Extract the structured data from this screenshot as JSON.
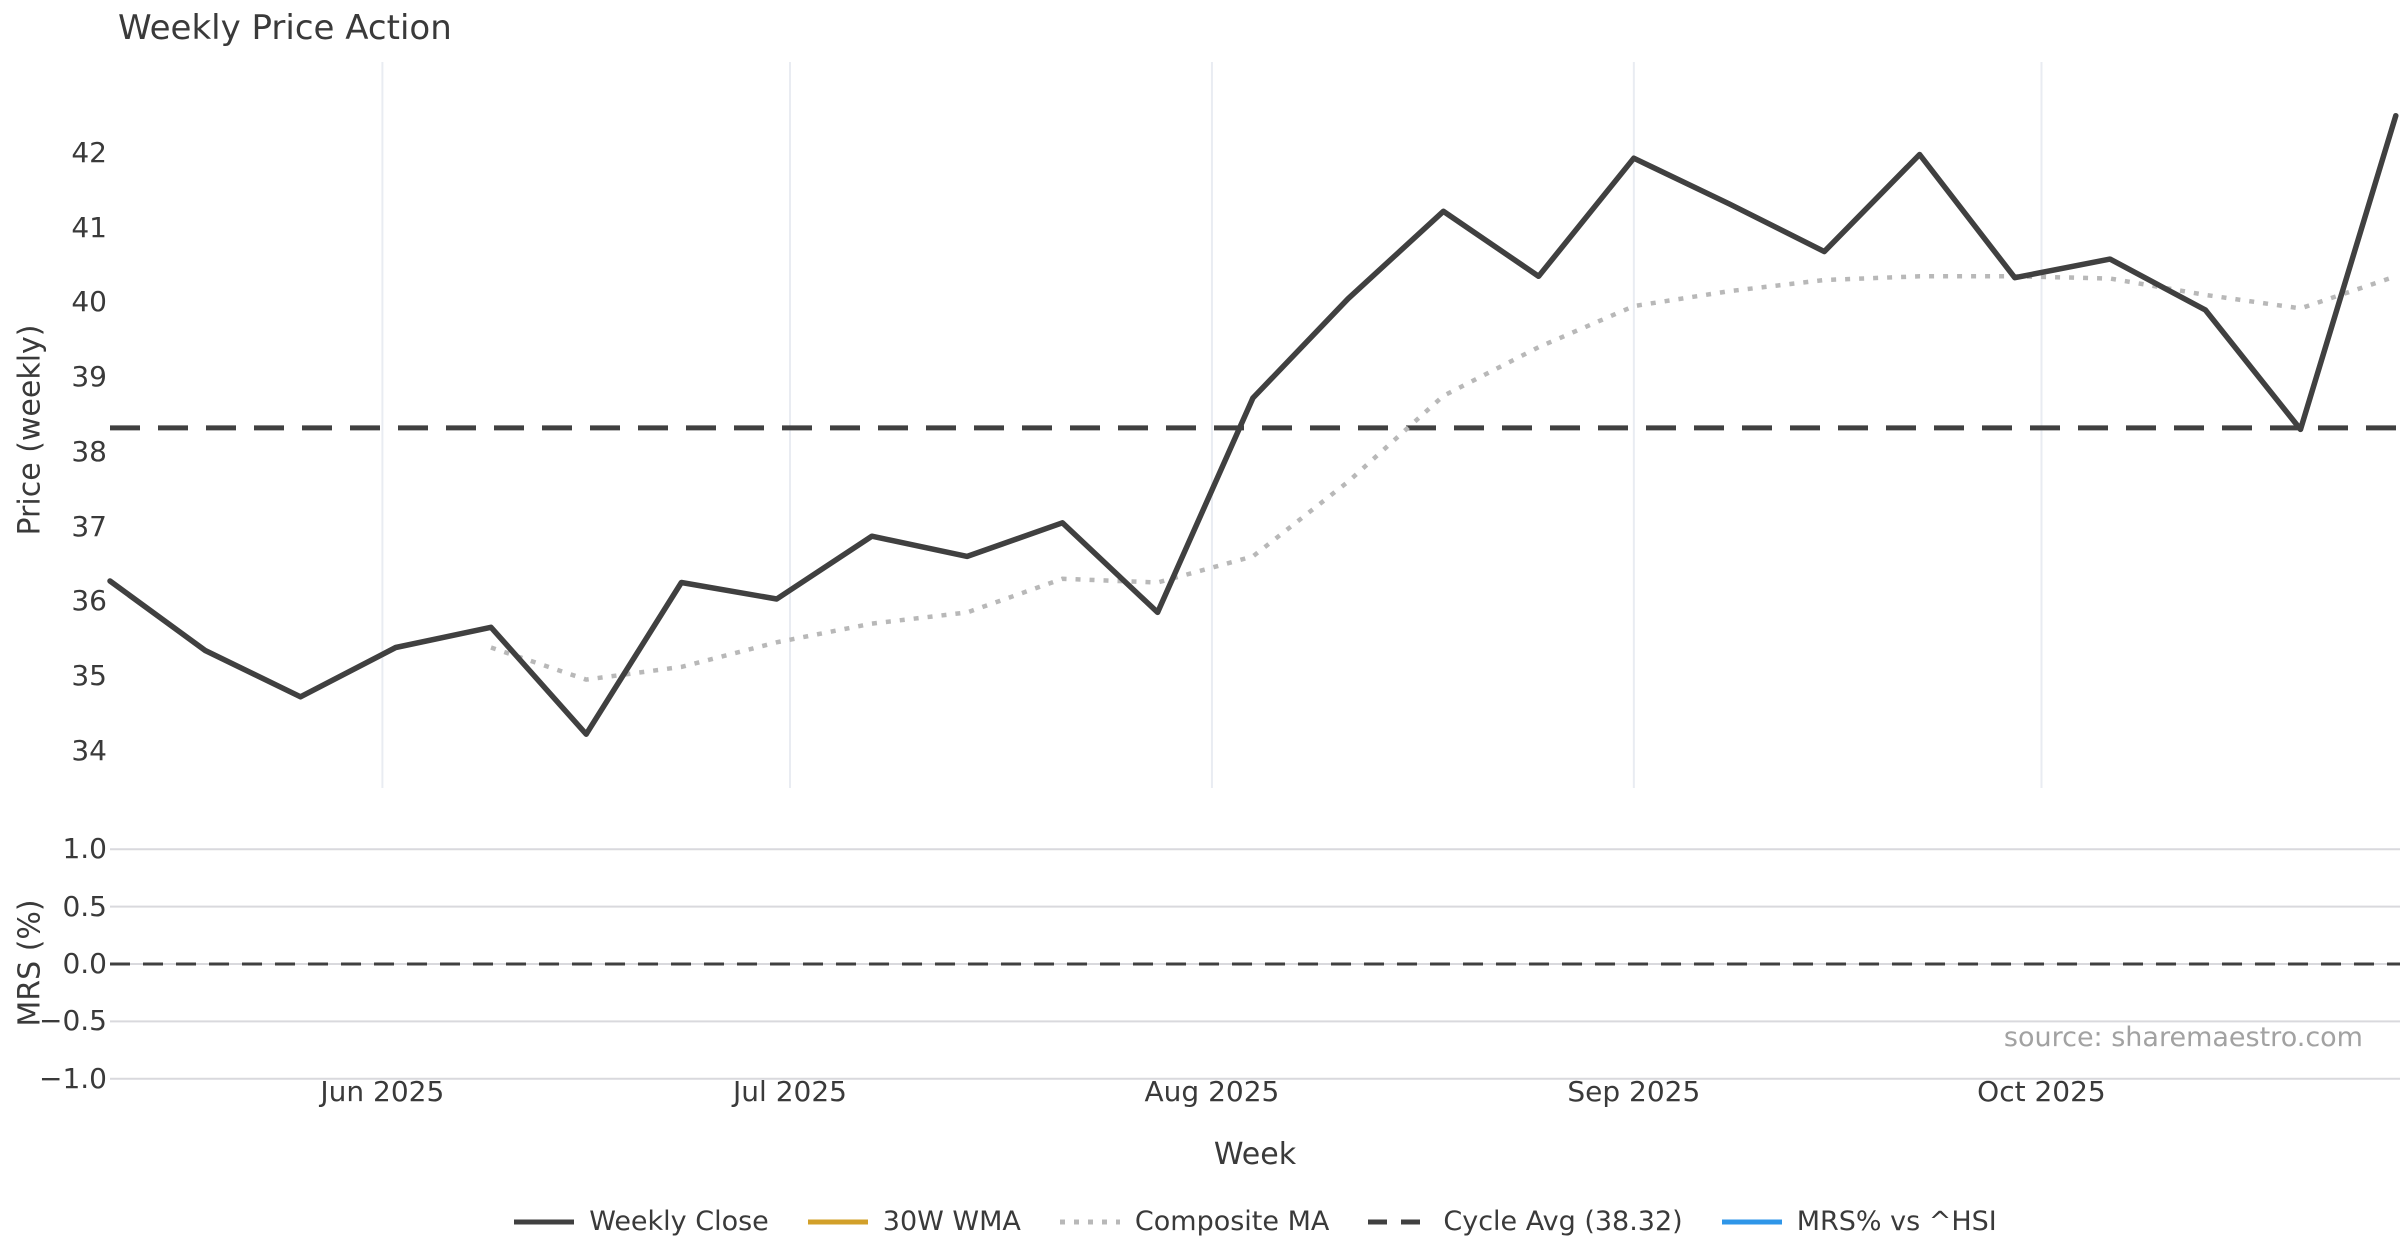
{
  "title": "Weekly Price Action",
  "source": "source: sharemaestro.com",
  "colors": {
    "weekly_close": "#404040",
    "wma_30w": "#d2a02a",
    "composite_ma": "#b8b8b8",
    "cycle_avg": "#404040",
    "mrs_line": "#2f96e8",
    "vertical_gridline": "#e9ecf2",
    "horizontal_gridline": "#d9d9dd",
    "text": "#3a3a3a",
    "source_text": "#a2a2a2"
  },
  "price_axis": {
    "label": "Price (weekly)",
    "ticks": [
      42,
      41,
      40,
      39,
      38,
      37,
      36,
      35,
      34
    ],
    "ylim": [
      33.5,
      43.2
    ]
  },
  "mrs_axis": {
    "label": "MRS (%)",
    "ticks": [
      {
        "value": 1.0,
        "label": "1.0"
      },
      {
        "value": 0.5,
        "label": "0.5"
      },
      {
        "value": 0.0,
        "label": "0.0"
      },
      {
        "value": -0.5,
        "label": "−0.5"
      },
      {
        "value": -1.0,
        "label": "−1.0"
      }
    ],
    "ylim": [
      -1.19,
      1.19
    ],
    "zero_reference": 0.0
  },
  "x_axis": {
    "label": "Week",
    "month_ticks": [
      {
        "label": "Jun 2025",
        "week_pos": 2.86
      },
      {
        "label": "Jul 2025",
        "week_pos": 7.14
      },
      {
        "label": "Aug 2025",
        "week_pos": 11.57
      },
      {
        "label": "Sep 2025",
        "week_pos": 16.0
      },
      {
        "label": "Oct 2025",
        "week_pos": 20.28
      }
    ]
  },
  "legend": [
    {
      "label": "Weekly Close",
      "color": "#404040",
      "style": "solid"
    },
    {
      "label": "30W WMA",
      "color": "#d2a02a",
      "style": "solid"
    },
    {
      "label": "Composite MA",
      "color": "#b8b8b8",
      "style": "dotted"
    },
    {
      "label": "Cycle Avg (38.32)",
      "color": "#404040",
      "style": "dashed"
    },
    {
      "label": "MRS% vs ^HSI",
      "color": "#2f96e8",
      "style": "solid"
    }
  ],
  "chart_data": {
    "type": "line",
    "title": "Weekly Price Action",
    "xlabel": "Week",
    "x_unit": "weekly index (0 = first plotted week, mid-May 2025)",
    "panels": [
      "Price (weekly)",
      "MRS (%)"
    ],
    "grid": {
      "top_panel": "vertical month lines only",
      "bottom_panel": "horizontal lines only"
    },
    "legend_position": "bottom center",
    "series": [
      {
        "name": "Weekly Close",
        "panel": "top",
        "style": "solid",
        "color": "#404040",
        "x_start_index": 0,
        "values": [
          36.27,
          35.34,
          34.72,
          35.38,
          35.65,
          34.22,
          36.25,
          36.03,
          36.87,
          36.6,
          37.05,
          35.85,
          38.72,
          40.05,
          41.22,
          40.35,
          41.93,
          41.32,
          40.68,
          41.98,
          40.33,
          40.58,
          39.9,
          38.3,
          42.5
        ]
      },
      {
        "name": "Composite MA",
        "panel": "top",
        "style": "dotted",
        "color": "#b8b8b8",
        "x_start_index": 4,
        "values": [
          35.38,
          34.95,
          35.12,
          35.45,
          35.7,
          35.85,
          36.3,
          36.25,
          36.6,
          37.6,
          38.75,
          39.4,
          39.95,
          40.15,
          40.3,
          40.35,
          40.35,
          40.32,
          40.1,
          39.92,
          40.35
        ]
      },
      {
        "name": "Cycle Avg (38.32)",
        "panel": "top",
        "style": "dashed",
        "color": "#404040",
        "constant": 38.32
      },
      {
        "name": "30W WMA",
        "panel": "top",
        "style": "solid",
        "color": "#d2a02a",
        "values": []
      },
      {
        "name": "MRS% vs ^HSI",
        "panel": "bottom",
        "style": "solid",
        "color": "#2f96e8",
        "values": []
      }
    ],
    "top_panel_ylim": [
      33.5,
      43.2
    ],
    "bottom_panel_ylim": [
      -1.19,
      1.19
    ],
    "bottom_panel_reference_line": 0.0
  }
}
